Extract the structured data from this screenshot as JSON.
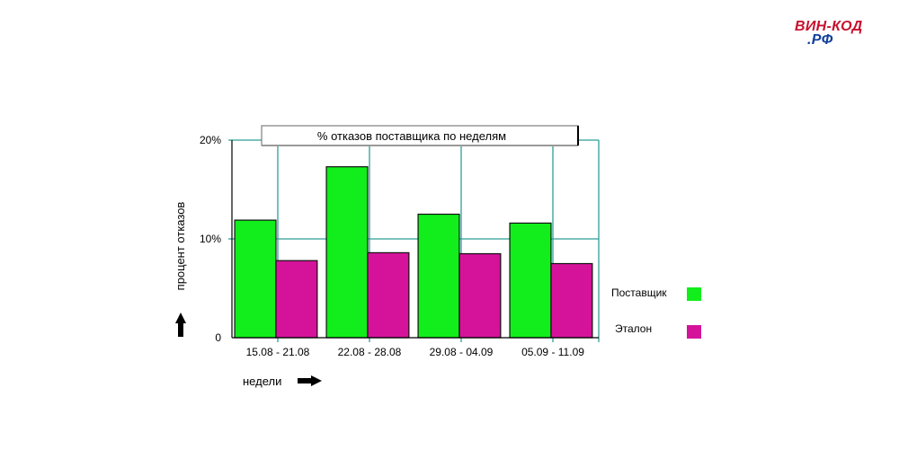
{
  "logo": {
    "line1": "ВИН-КОД",
    "line2": ".РФ"
  },
  "chart_data": {
    "type": "bar",
    "title": "% отказов поставщика по неделям",
    "categories": [
      "15.08 - 21.08",
      "22.08 - 28.08",
      "29.08 - 04.09",
      "05.09 - 11.09"
    ],
    "series": [
      {
        "name": "Поставщик",
        "values": [
          11.9,
          17.3,
          12.5,
          11.6
        ],
        "color": "#11ee1b"
      },
      {
        "name": "Эталон",
        "values": [
          7.8,
          8.6,
          8.5,
          7.5
        ],
        "color": "#d5139a"
      }
    ],
    "ylim": [
      0,
      20
    ],
    "yticks": [
      0,
      10,
      20
    ],
    "ytick_labels": [
      "0",
      "10%",
      "20%"
    ],
    "ylabel": "процент отказов",
    "xlabel": "недели",
    "grid": true,
    "grid_color": "#2e9e98",
    "legend_position": "right"
  }
}
